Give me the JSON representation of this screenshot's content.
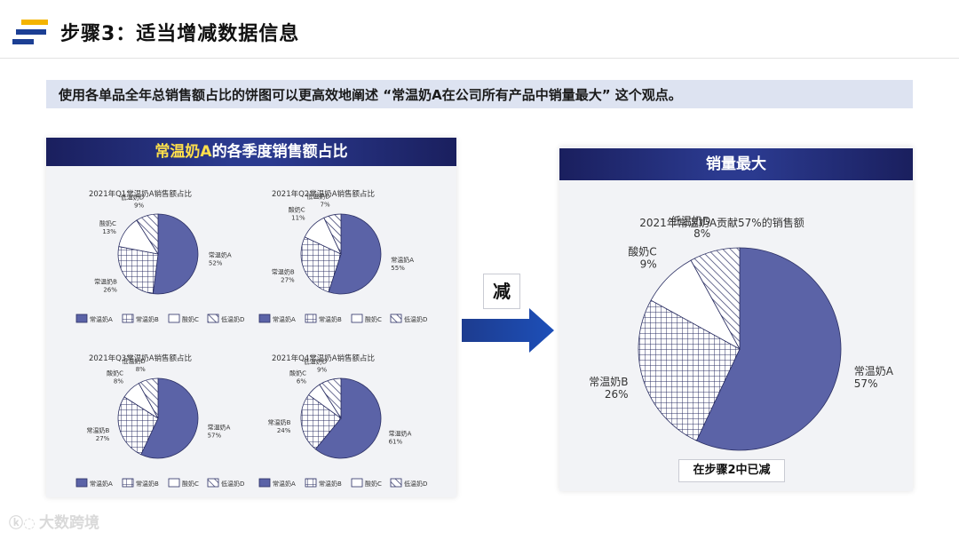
{
  "header": {
    "title": "步骤3：适当增减数据信息"
  },
  "banner": {
    "text": "使用各单品全年总销售额占比的饼图可以更高效地阐述 “常温奶A在公司所有产品中销量最大” 这个观点。"
  },
  "left_panel": {
    "title_highlight": "常温奶A",
    "title_rest": "的各季度销售额占比"
  },
  "arrow": {
    "label": "减"
  },
  "right_panel": {
    "title": "销量最大",
    "note": "在步骤2中已减"
  },
  "watermark": {
    "text": "大数跨境"
  },
  "colors": {
    "navy": "#1a1f5e",
    "slice_a": "#5b63a7",
    "outline": "#2c3064"
  },
  "chart_data": [
    {
      "type": "pie",
      "title": "2021年Q1常温奶A销售额占比",
      "labels": [
        "常温奶A",
        "常温奶B",
        "酸奶C",
        "低温奶D"
      ],
      "values": [
        52,
        26,
        13,
        9
      ],
      "value_labels": [
        "52%",
        "26%",
        "13%",
        "9%"
      ],
      "legend": [
        "常温奶A",
        "常温奶B",
        "酸奶C",
        "低温奶D"
      ]
    },
    {
      "type": "pie",
      "title": "2021年Q2常温奶A销售额占比",
      "labels": [
        "常温奶A",
        "常温奶B",
        "酸奶C",
        "低温奶D"
      ],
      "values": [
        55,
        27,
        11,
        7
      ],
      "value_labels": [
        "55%",
        "27%",
        "11%",
        "7%"
      ],
      "legend": [
        "常温奶A",
        "常温奶B",
        "酸奶C",
        "低温奶D"
      ]
    },
    {
      "type": "pie",
      "title": "2021年Q3常温奶A销售额占比",
      "labels": [
        "常温奶A",
        "常温奶B",
        "酸奶C",
        "低温奶D"
      ],
      "values": [
        57,
        27,
        8,
        8
      ],
      "value_labels": [
        "57%",
        "27%",
        "8%",
        "8%"
      ],
      "legend": [
        "常温奶A",
        "常温奶B",
        "酸奶C",
        "低温奶D"
      ]
    },
    {
      "type": "pie",
      "title": "2021年Q4常温奶A销售额占比",
      "labels": [
        "常温奶A",
        "常温奶B",
        "酸奶C",
        "低温奶D"
      ],
      "values": [
        61,
        24,
        6,
        9
      ],
      "value_labels": [
        "61%",
        "24%",
        "6%",
        "9%"
      ],
      "legend": [
        "常温奶A",
        "常温奶B",
        "酸奶C",
        "低温奶D"
      ]
    },
    {
      "type": "pie",
      "title": "2021年常温奶A贡献57%的销售额",
      "labels": [
        "常温奶A",
        "常温奶B",
        "酸奶C",
        "低温奶D"
      ],
      "values": [
        57,
        26,
        9,
        8
      ],
      "value_labels": [
        "57%",
        "26%",
        "9%",
        "8%"
      ]
    }
  ]
}
